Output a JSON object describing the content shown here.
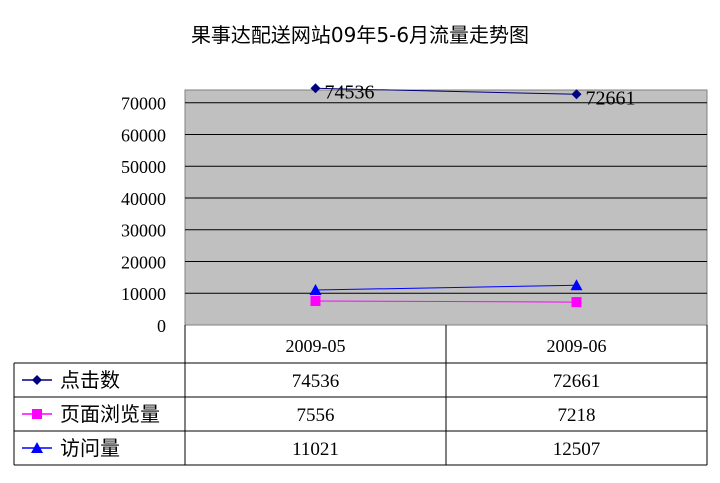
{
  "chart_data": {
    "type": "line",
    "title": "果事达配送网站09年5-6月流量走势图",
    "categories": [
      "2009-05",
      "2009-06"
    ],
    "ylim": [
      0,
      70000
    ],
    "yticks": [
      "0",
      "10000",
      "20000",
      "30000",
      "40000",
      "50000",
      "60000",
      "70000"
    ],
    "grid": true,
    "legend": "data-table",
    "series": [
      {
        "name": "点击数",
        "values": [
          74536,
          72661
        ],
        "labels": [
          "74536",
          "72661"
        ],
        "color": "#000080",
        "marker": "diamond",
        "show_labels": true
      },
      {
        "name": "页面浏览量",
        "values": [
          7556,
          7218
        ],
        "labels": [
          "7556",
          "7218"
        ],
        "color": "#ff00ff",
        "marker": "square",
        "show_labels": false
      },
      {
        "name": "访问量",
        "values": [
          11021,
          12507
        ],
        "labels": [
          "11021",
          "12507"
        ],
        "color": "#0000ff",
        "marker": "triangle",
        "show_labels": false
      }
    ],
    "plot_background": "#c0c0c0"
  }
}
